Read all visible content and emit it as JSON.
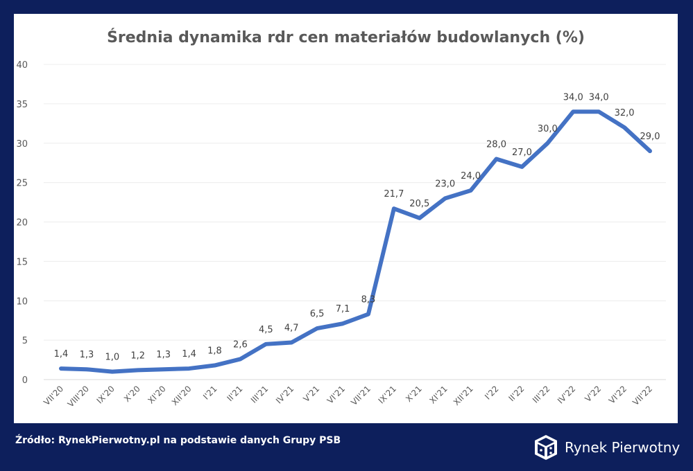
{
  "chart_data": {
    "type": "line",
    "title": "Średnia dynamika rdr cen materiałów budowlanych (%)",
    "xlabel": "",
    "ylabel": "",
    "ylim": [
      0,
      40
    ],
    "yticks": [
      0,
      5,
      10,
      15,
      20,
      25,
      30,
      35,
      40
    ],
    "categories": [
      "VII'20",
      "VIII'20",
      "IX'20",
      "X'20",
      "XI'20",
      "XII'20",
      "I'21",
      "II'21",
      "III'21",
      "IV'21",
      "V'21",
      "VI'21",
      "VII'21",
      "IX'21",
      "X'21",
      "XI'21",
      "XII'21",
      "I'22",
      "II'22",
      "III'22",
      "IV'22",
      "V'22",
      "VI'22",
      "VII'22"
    ],
    "series": [
      {
        "name": "Średnia dynamika rdr",
        "values": [
          1.4,
          1.3,
          1.0,
          1.2,
          1.3,
          1.4,
          1.8,
          2.6,
          4.5,
          4.7,
          6.5,
          7.1,
          8.3,
          21.7,
          20.5,
          23.0,
          24.0,
          28.0,
          27.0,
          30.0,
          34.0,
          34.0,
          32.0,
          29.0
        ],
        "labels": [
          "1,4",
          "1,3",
          "1,0",
          "1,2",
          "1,3",
          "1,4",
          "1,8",
          "2,6",
          "4,5",
          "4,7",
          "6,5",
          "7,1",
          "8,3",
          "21,7",
          "20,5",
          "23,0",
          "24,0",
          "28,0",
          "27,0",
          "30,0",
          "34,0",
          "34,0",
          "32,0",
          "29,0"
        ],
        "color": "#4472c4"
      }
    ],
    "grid": true,
    "legend": "none"
  },
  "footer": {
    "source": "Źródło: RynekPierwotny.pl na podstawie danych Grupy PSB",
    "brand": "Rynek Pierwotny"
  },
  "colors": {
    "background": "#0d1f5c",
    "panel": "#ffffff",
    "line": "#4472c4"
  }
}
